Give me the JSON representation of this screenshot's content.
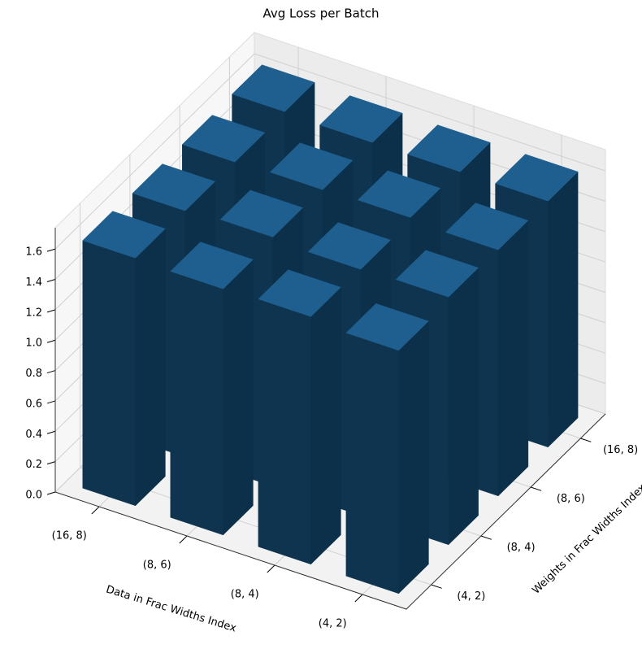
{
  "chart_data": {
    "type": "bar3d",
    "title": "Avg Loss per Batch",
    "xlabel": "Data in Frac Widths Index",
    "ylabel": "Weights in Frac Widths Index",
    "x_categories": [
      "(16, 8)",
      "(8, 6)",
      "(8, 4)",
      "(4, 2)"
    ],
    "y_categories": [
      "(4, 2)",
      "(8, 4)",
      "(8, 6)",
      "(16, 8)"
    ],
    "values": [
      [
        1.63,
        1.62,
        1.62,
        1.63
      ],
      [
        1.62,
        1.64,
        1.63,
        1.62
      ],
      [
        1.63,
        1.62,
        1.64,
        1.62
      ],
      [
        1.6,
        1.63,
        1.62,
        1.62
      ]
    ],
    "color": "#1f5f8f",
    "zlim": [
      0,
      1.74
    ],
    "zticks": [
      {
        "value": 0,
        "label": "0.0"
      },
      0.2,
      0.4,
      0.6,
      0.8,
      {
        "value": 1,
        "label": "1.0"
      },
      1.2,
      1.4,
      1.6
    ],
    "grid": true
  }
}
